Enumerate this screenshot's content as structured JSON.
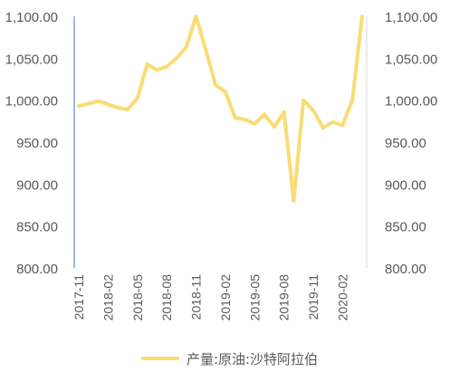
{
  "chart_data": {
    "type": "line",
    "x": [
      "2017-11",
      "2017-12",
      "2018-01",
      "2018-02",
      "2018-03",
      "2018-04",
      "2018-05",
      "2018-06",
      "2018-07",
      "2018-08",
      "2018-09",
      "2018-10",
      "2018-11",
      "2018-12",
      "2019-01",
      "2019-02",
      "2019-03",
      "2019-04",
      "2019-05",
      "2019-06",
      "2019-07",
      "2019-08",
      "2019-09",
      "2019-10",
      "2019-11",
      "2019-12",
      "2020-01",
      "2020-02",
      "2020-03",
      "2020-04"
    ],
    "x_tick_labels": [
      "2017-11",
      "2018-02",
      "2018-05",
      "2018-08",
      "2018-11",
      "2019-02",
      "2019-05",
      "2019-08",
      "2019-11",
      "2020-02"
    ],
    "series": [
      {
        "name": "产量:原油:沙特阿拉伯",
        "color": "#FADB75",
        "values": [
          993,
          996,
          999,
          995,
          991,
          989,
          1002,
          1043,
          1036,
          1040,
          1050,
          1063,
          1100,
          1060,
          1018,
          1010,
          979,
          977,
          972,
          983,
          968,
          986,
          880,
          1000,
          988,
          967,
          974,
          970,
          1000,
          1100
        ]
      }
    ],
    "y_left": {
      "min": 800,
      "max": 1100,
      "ticks": [
        "800.00",
        "850.00",
        "900.00",
        "950.00",
        "1,000.00",
        "1,050.00",
        "1,100.00"
      ]
    },
    "y_right": {
      "min": 800,
      "max": 1100,
      "ticks": [
        "800.00",
        "850.00",
        "900.00",
        "950.00",
        "1,000.00",
        "1,050.00",
        "1,100.00"
      ]
    },
    "grid": false,
    "legend_position": "bottom"
  }
}
